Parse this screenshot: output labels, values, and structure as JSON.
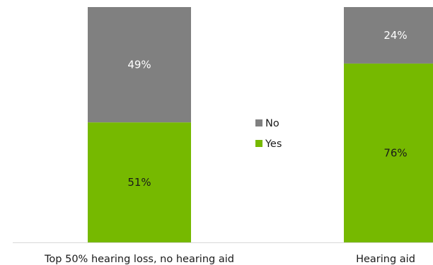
{
  "chart_data": {
    "type": "bar",
    "stacked": true,
    "percent": true,
    "categories": [
      "Top 50% hearing loss, no hearing aid",
      "Hearing aid"
    ],
    "series": [
      {
        "name": "Yes",
        "values": [
          51,
          76
        ],
        "labels": [
          "51%",
          "76%"
        ],
        "color": "#76b900"
      },
      {
        "name": "No",
        "values": [
          49,
          24
        ],
        "labels": [
          "49%",
          "24%"
        ],
        "color": "#808080"
      }
    ],
    "ylim": [
      0,
      100
    ],
    "legend": {
      "position": "center",
      "order": [
        "No",
        "Yes"
      ]
    },
    "grid": false,
    "label_colors": {
      "Yes": "#1a1a1a",
      "No": "#ffffff"
    }
  }
}
